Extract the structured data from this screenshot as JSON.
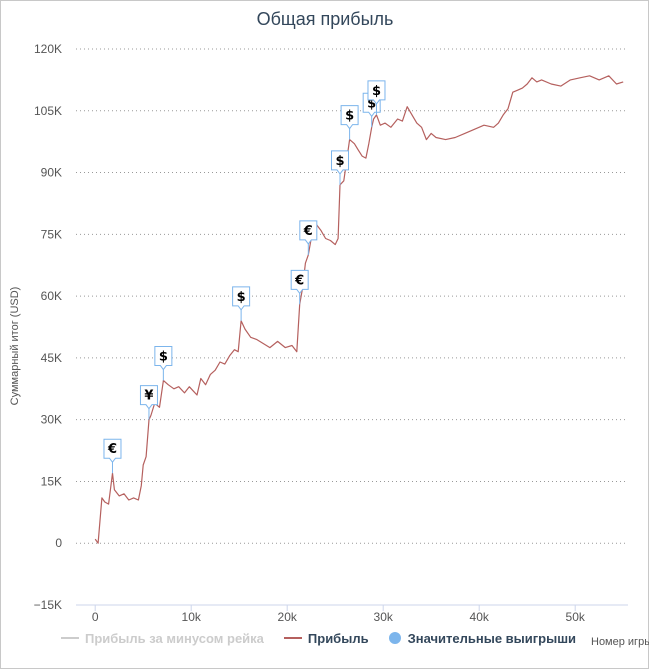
{
  "chart_data": {
    "type": "line",
    "title": "Общая прибыль",
    "ylabel": "Суммарный итог (USD)",
    "xlabel": "Номер игры",
    "xlim": [
      -2000,
      55500
    ],
    "ylim": [
      -15000,
      120000
    ],
    "x_ticks": [
      0,
      10000,
      20000,
      30000,
      40000,
      50000
    ],
    "x_tick_labels": [
      "0",
      "10k",
      "20k",
      "30k",
      "40k",
      "50k"
    ],
    "y_ticks": [
      -15000,
      0,
      15000,
      30000,
      45000,
      60000,
      75000,
      90000,
      105000,
      120000
    ],
    "y_tick_labels": [
      "−15K",
      "0",
      "15K",
      "30K",
      "45K",
      "60K",
      "75K",
      "90K",
      "105K",
      "120K"
    ],
    "grid": true,
    "legend_position": "bottom",
    "series": [
      {
        "name": "Прибыль за минусом рейка",
        "visible": false,
        "color": "#cccccc",
        "x": [],
        "y": []
      },
      {
        "name": "Прибыль",
        "color": "#b5605e",
        "x": [
          0,
          300,
          700,
          1000,
          1400,
          1800,
          2000,
          2500,
          3000,
          3500,
          4000,
          4500,
          4800,
          5000,
          5300,
          5600,
          5800,
          6200,
          6700,
          7100,
          7600,
          8200,
          8700,
          9300,
          9800,
          10200,
          10600,
          11000,
          11500,
          12000,
          12500,
          13000,
          13500,
          14000,
          14500,
          14900,
          15200,
          15600,
          16200,
          16800,
          17500,
          18200,
          19000,
          19800,
          20500,
          21000,
          21300,
          21600,
          21900,
          22200,
          22500,
          22700,
          23000,
          23500,
          24000,
          24500,
          25000,
          25300,
          25500,
          25900,
          26200,
          26500,
          27000,
          27400,
          27800,
          28200,
          28500,
          28800,
          29000,
          29300,
          29700,
          30200,
          30800,
          31500,
          32000,
          32500,
          33000,
          33500,
          34000,
          34500,
          35000,
          35500,
          36500,
          37500,
          38500,
          39500,
          40500,
          41500,
          42000,
          42500,
          43000,
          43500,
          44000,
          44500,
          45000,
          45500,
          46000,
          46500,
          47500,
          48500,
          49500,
          50500,
          51500,
          52500,
          53500,
          54300,
          55000
        ],
        "y": [
          1000,
          0,
          11000,
          10000,
          9500,
          17000,
          13000,
          11500,
          12000,
          10500,
          11000,
          10500,
          14000,
          19000,
          21000,
          30000,
          31000,
          34000,
          33000,
          39500,
          38500,
          37500,
          38000,
          36500,
          38000,
          37000,
          36000,
          40000,
          38500,
          41000,
          42000,
          44000,
          43500,
          45500,
          47000,
          46500,
          54000,
          52000,
          50000,
          49500,
          48500,
          47500,
          49000,
          47500,
          48000,
          46500,
          58000,
          62000,
          68000,
          70000,
          74000,
          76500,
          77500,
          76000,
          74000,
          73500,
          72500,
          74000,
          87000,
          88000,
          93000,
          98000,
          97000,
          95500,
          94000,
          93500,
          97000,
          101000,
          103000,
          104000,
          101500,
          102000,
          101000,
          103000,
          102500,
          106000,
          104000,
          102000,
          101000,
          98000,
          99500,
          98500,
          98000,
          98500,
          99500,
          100500,
          101500,
          101000,
          102000,
          104000,
          105500,
          109500,
          110000,
          110500,
          111500,
          113000,
          112000,
          112500,
          111500,
          111000,
          112500,
          113000,
          113500,
          112500,
          113500,
          111500,
          112000
        ]
      },
      {
        "name": "Значительные выигрыши",
        "color": "#7cb5ec",
        "points": [
          {
            "x": 1800,
            "y": 17000,
            "symbol": "€"
          },
          {
            "x": 5600,
            "y": 30000,
            "symbol": "¥"
          },
          {
            "x": 7100,
            "y": 39500,
            "symbol": "$"
          },
          {
            "x": 15200,
            "y": 54000,
            "symbol": "$"
          },
          {
            "x": 21300,
            "y": 58000,
            "symbol": "€"
          },
          {
            "x": 22200,
            "y": 70000,
            "symbol": "€"
          },
          {
            "x": 25500,
            "y": 87000,
            "symbol": "$"
          },
          {
            "x": 26500,
            "y": 98000,
            "symbol": "$"
          },
          {
            "x": 28800,
            "y": 101000,
            "symbol": "$"
          },
          {
            "x": 29300,
            "y": 104000,
            "symbol": "$"
          }
        ]
      }
    ]
  }
}
